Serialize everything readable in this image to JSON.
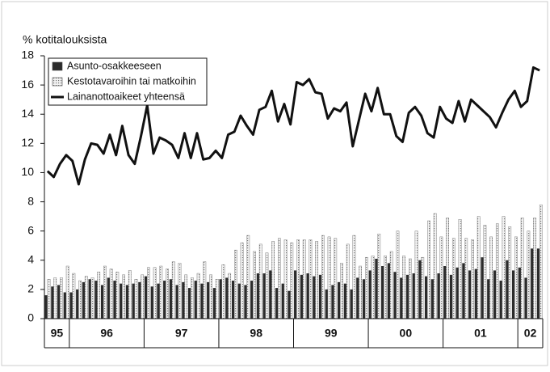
{
  "chart_data": {
    "type": "bar_line",
    "title": "% kotitalouksista",
    "categories": [
      "95",
      "95",
      "95",
      "95",
      "96",
      "96",
      "96",
      "96",
      "96",
      "96",
      "96",
      "96",
      "96",
      "96",
      "96",
      "96",
      "97",
      "97",
      "97",
      "97",
      "97",
      "97",
      "97",
      "97",
      "97",
      "97",
      "97",
      "97",
      "98",
      "98",
      "98",
      "98",
      "98",
      "98",
      "98",
      "98",
      "98",
      "98",
      "98",
      "98",
      "99",
      "99",
      "99",
      "99",
      "99",
      "99",
      "99",
      "99",
      "99",
      "99",
      "99",
      "99",
      "00",
      "00",
      "00",
      "00",
      "00",
      "00",
      "00",
      "00",
      "00",
      "00",
      "00",
      "00",
      "01",
      "01",
      "01",
      "01",
      "01",
      "01",
      "01",
      "01",
      "01",
      "01",
      "01",
      "01",
      "02",
      "02",
      "02",
      "02"
    ],
    "series": [
      {
        "name": "Asunto-osakkeeseen",
        "kind": "bar",
        "color": "#2b2b2b",
        "values": [
          1.6,
          2.2,
          2.3,
          1.8,
          1.8,
          2.0,
          2.5,
          2.7,
          2.6,
          2.3,
          2.8,
          2.6,
          2.4,
          2.3,
          2.4,
          2.5,
          2.9,
          2.2,
          2.4,
          2.6,
          2.7,
          2.3,
          2.5,
          2.1,
          2.6,
          2.4,
          2.5,
          2.1,
          2.7,
          2.8,
          2.6,
          2.4,
          2.3,
          2.6,
          3.1,
          3.1,
          3.3,
          2.1,
          2.4,
          1.9,
          3.3,
          3.0,
          3.1,
          2.9,
          3.0,
          2.0,
          2.3,
          2.5,
          2.4,
          2.0,
          2.8,
          2.7,
          3.3,
          4.1,
          3.6,
          3.8,
          3.2,
          2.8,
          3.0,
          3.1,
          4.0,
          2.9,
          2.7,
          3.1,
          3.6,
          3.0,
          3.5,
          3.8,
          3.3,
          3.4,
          4.2,
          2.7,
          3.3,
          2.6,
          4.0,
          3.3,
          3.5,
          2.8,
          4.8,
          4.8
        ]
      },
      {
        "name": "Kestotavaroihin tai matkoihin",
        "kind": "bar",
        "color": "#bdbdbd",
        "values": [
          2.7,
          2.8,
          2.8,
          3.6,
          3.1,
          2.6,
          2.9,
          2.8,
          3.2,
          3.6,
          3.4,
          3.2,
          3.0,
          3.3,
          2.7,
          3.0,
          3.5,
          3.5,
          3.6,
          3.4,
          3.9,
          3.8,
          3.0,
          2.8,
          3.1,
          3.9,
          3.0,
          2.7,
          3.7,
          3.1,
          4.7,
          5.2,
          5.7,
          4.6,
          5.1,
          4.5,
          5.3,
          5.5,
          5.4,
          5.2,
          5.4,
          5.4,
          5.4,
          5.3,
          5.7,
          5.6,
          5.5,
          3.8,
          5.1,
          5.7,
          3.6,
          4.2,
          4.3,
          5.8,
          4.3,
          4.6,
          6.0,
          4.3,
          4.1,
          6.0,
          4.2,
          6.7,
          7.2,
          5.6,
          6.9,
          5.5,
          6.8,
          5.5,
          5.4,
          7.0,
          6.4,
          5.6,
          6.5,
          7.0,
          6.3,
          5.6,
          6.9,
          6.0,
          6.9,
          7.8
        ]
      },
      {
        "name": "Lainanottoaikeet yhteensä",
        "kind": "line",
        "color": "#111111",
        "values": [
          10.1,
          9.7,
          10.6,
          11.2,
          10.8,
          9.2,
          10.9,
          12.0,
          11.9,
          11.3,
          12.6,
          11.2,
          13.2,
          11.2,
          10.6,
          12.5,
          14.6,
          11.3,
          12.4,
          12.2,
          11.9,
          11.0,
          12.7,
          11.0,
          12.7,
          10.9,
          11.0,
          11.5,
          11.0,
          12.6,
          12.8,
          13.9,
          13.2,
          12.6,
          14.3,
          14.5,
          15.6,
          13.5,
          14.7,
          13.3,
          16.2,
          16.0,
          16.4,
          15.5,
          15.4,
          13.7,
          14.4,
          14.2,
          14.8,
          11.8,
          13.6,
          15.4,
          14.2,
          15.8,
          14.0,
          14.0,
          12.5,
          12.1,
          14.1,
          14.5,
          13.9,
          12.7,
          12.4,
          14.5,
          13.7,
          13.4,
          14.9,
          13.5,
          15.0,
          14.6,
          14.2,
          13.8,
          13.1,
          14.1,
          15.0,
          15.6,
          14.5,
          14.9,
          17.2,
          17.0
        ]
      }
    ],
    "ylim": [
      0,
      18
    ],
    "yticks": [
      0,
      2,
      4,
      6,
      8,
      10,
      12,
      14,
      16,
      18
    ],
    "legend": "top-left"
  }
}
